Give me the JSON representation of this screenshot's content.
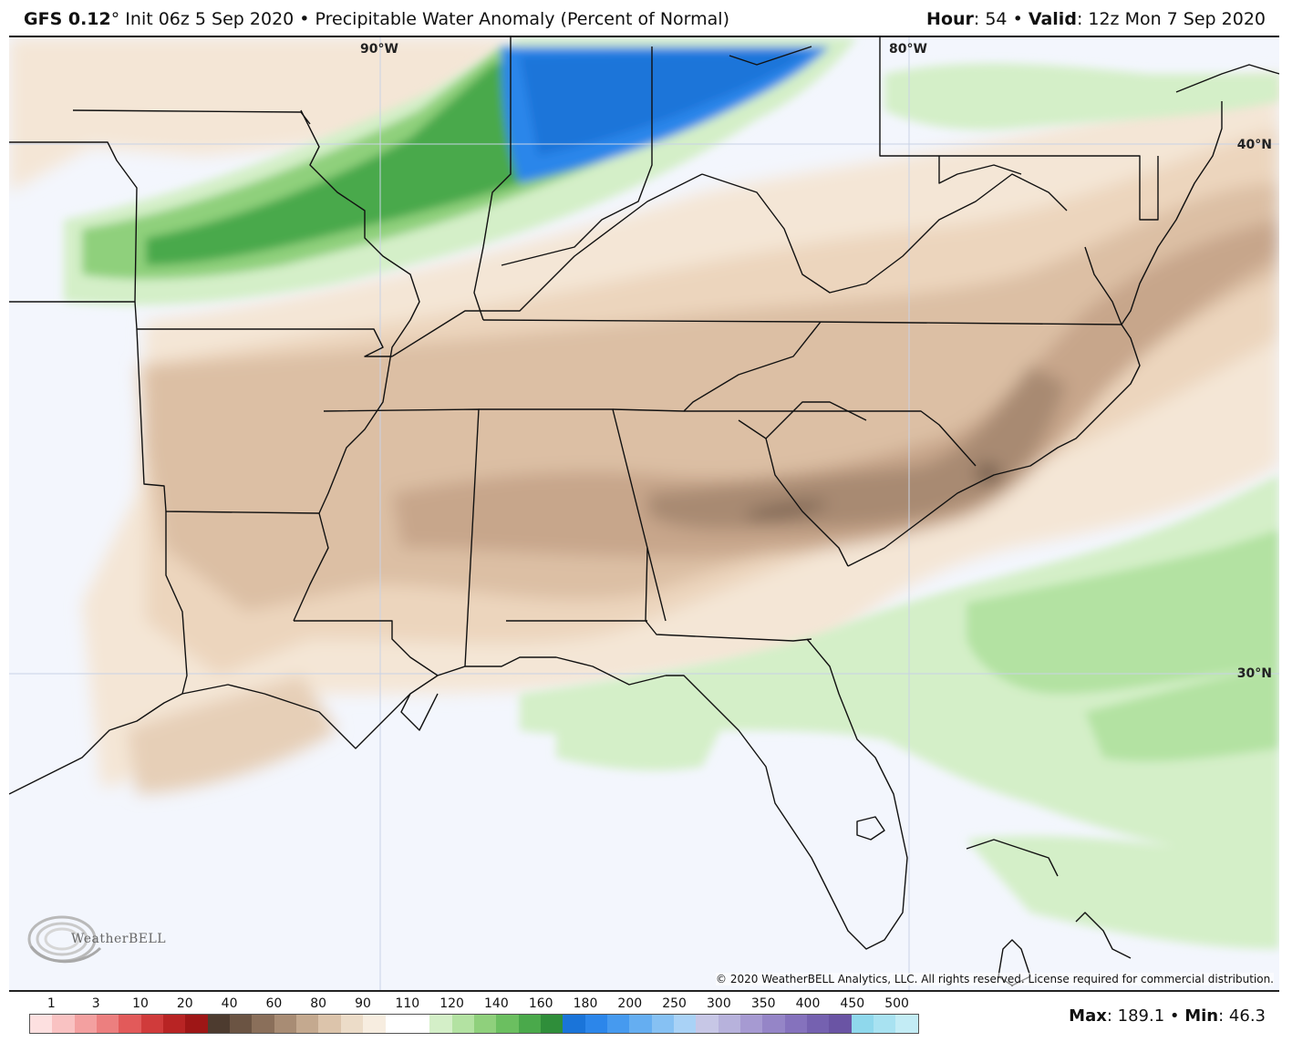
{
  "header": {
    "model": "GFS 0.12",
    "model_suffix": "°",
    "init": " Init 06z 5 Sep 2020 • Precipitable Water Anomaly (Percent of Normal)",
    "hour_label": "Hour",
    "hour_value": ": 54 • ",
    "valid_label": "Valid",
    "valid_value": ": 12z Mon 7 Sep 2020"
  },
  "map": {
    "lon_labels": [
      "90°W",
      "80°W"
    ],
    "lat_labels": [
      "40°N",
      "30°N"
    ],
    "copyright": "© 2020 WeatherBELL Analytics, LLC. All rights reserved. License required for commercial distribution.",
    "logo_text": "WeatherBELL",
    "logo_icon": "swirl-logo-icon"
  },
  "legend": {
    "labels": [
      "1",
      "3",
      "10",
      "20",
      "40",
      "60",
      "80",
      "90",
      "110",
      "120",
      "140",
      "160",
      "180",
      "200",
      "250",
      "300",
      "350",
      "400",
      "450",
      "500"
    ],
    "colors": [
      "#fde0e0",
      "#f9c2c2",
      "#f3a0a0",
      "#ec7f7f",
      "#e25a5a",
      "#d03b3b",
      "#b82424",
      "#9e1616",
      "#4d3b2f",
      "#6b5443",
      "#8a6f5a",
      "#a88c74",
      "#c4a98f",
      "#dcc4ab",
      "#ecdcc8",
      "#f7ede0",
      "#ffffff",
      "#ffffff",
      "#d4efc8",
      "#b3e2a2",
      "#8fd07c",
      "#6bbf60",
      "#4aa94b",
      "#2f8e3a",
      "#1a74d9",
      "#2c86ea",
      "#469aef",
      "#65aef1",
      "#86c1f3",
      "#a9d2f6",
      "#c7c7e6",
      "#b7b2dc",
      "#a69ad2",
      "#9585c7",
      "#8572bd",
      "#7561b0",
      "#6a54a4",
      "#8fd8ec",
      "#a8e2f1",
      "#c3ecf5"
    ],
    "max_label": "Max",
    "max_value": ": 189.1 • ",
    "min_label": "Min",
    "min_value": ": 46.3"
  }
}
